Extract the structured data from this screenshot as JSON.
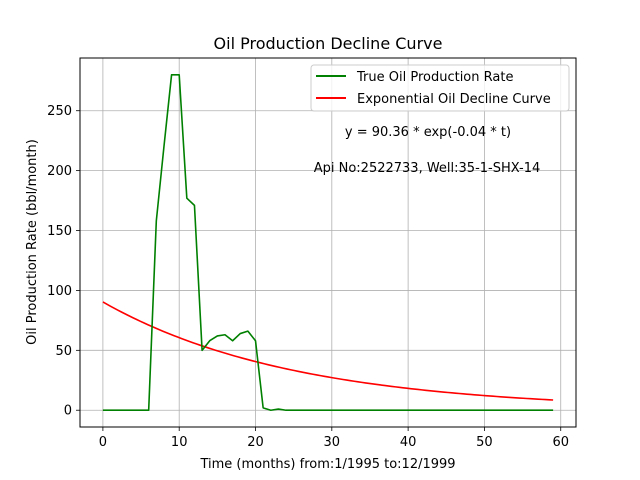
{
  "chart_data": {
    "type": "line",
    "title": "Oil Production Decline Curve",
    "xlabel": "Time (months) from:1/1995 to:12/1999",
    "ylabel": "Oil Production Rate (bbl/month)",
    "xlim": [
      -3,
      62
    ],
    "ylim": [
      -14,
      294
    ],
    "xticks": [
      0,
      10,
      20,
      30,
      40,
      50,
      60
    ],
    "yticks": [
      0,
      50,
      100,
      150,
      200,
      250
    ],
    "grid": true,
    "legend_position": "top-right",
    "annotations": [
      "y = 90.36 * exp(-0.04 * t)",
      "Api No:2522733, Well:35-1-SHX-14"
    ],
    "series": [
      {
        "name": "True Oil Production Rate",
        "color": "#008000",
        "x": [
          0,
          1,
          2,
          3,
          4,
          5,
          6,
          7,
          8,
          9,
          10,
          11,
          12,
          13,
          14,
          15,
          16,
          17,
          18,
          19,
          20,
          21,
          22,
          23,
          24,
          25,
          26,
          27,
          28,
          29,
          30,
          31,
          32,
          33,
          34,
          35,
          36,
          37,
          38,
          39,
          40,
          41,
          42,
          43,
          44,
          45,
          46,
          47,
          48,
          49,
          50,
          51,
          52,
          53,
          54,
          55,
          56,
          57,
          58,
          59
        ],
        "y": [
          0,
          0,
          0,
          0,
          0,
          0,
          0,
          158,
          220,
          280,
          280,
          177,
          171,
          50,
          58,
          62,
          63,
          58,
          64,
          66,
          58,
          2,
          0,
          1,
          0,
          0,
          0,
          0,
          0,
          0,
          0,
          0,
          0,
          0,
          0,
          0,
          0,
          0,
          0,
          0,
          0,
          0,
          0,
          0,
          0,
          0,
          0,
          0,
          0,
          0,
          0,
          0,
          0,
          0,
          0,
          0,
          0,
          0,
          0,
          0
        ]
      },
      {
        "name": "Exponential Oil Decline Curve",
        "color": "#ff0000",
        "model": {
          "a": 90.36,
          "b": -0.04,
          "x_start": 0,
          "x_end": 59
        }
      }
    ]
  }
}
